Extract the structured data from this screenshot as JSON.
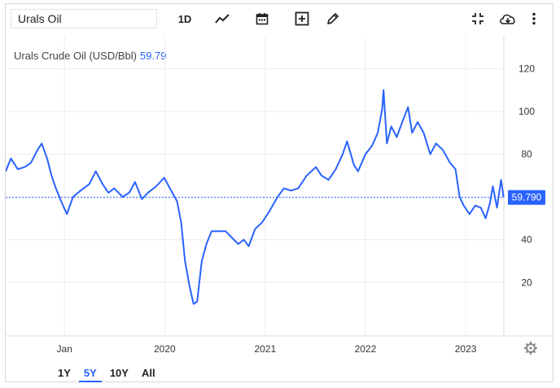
{
  "search": {
    "value": "Urals Oil"
  },
  "toolbar": {
    "interval_label": "1D",
    "icons": [
      "line-chart-icon",
      "calendar-icon",
      "add-indicator-icon",
      "pencil-icon",
      "fullscreen-icon",
      "download-icon",
      "more-vertical-icon"
    ]
  },
  "ranges": [
    {
      "label": "1Y",
      "active": false
    },
    {
      "label": "5Y",
      "active": true
    },
    {
      "label": "10Y",
      "active": false
    },
    {
      "label": "All",
      "active": false
    }
  ],
  "colors": {
    "line": "#2962ff",
    "grid": "#ececec",
    "badge": "#2962ff"
  },
  "chart_data": {
    "type": "line",
    "title": "Urals Crude Oil (USD/Bbl)",
    "last_value": "59.79",
    "last_badge": "59.790",
    "y_ticks": [
      "20",
      "40",
      "60",
      "80",
      "100",
      "120"
    ],
    "ylim": [
      -5,
      135
    ],
    "x_ticks": [
      "Jan",
      "2020",
      "2021",
      "2022",
      "2023"
    ],
    "x_tick_dates": [
      "2019-01-01",
      "2020-01-01",
      "2021-01-01",
      "2022-01-01",
      "2023-01-01"
    ],
    "xlim": [
      "2018-06-01",
      "2023-05-20"
    ],
    "grid": true,
    "series": [
      {
        "x": [
          "2018-06-01",
          "2018-06-20",
          "2018-07-15",
          "2018-08-10",
          "2018-09-01",
          "2018-09-25",
          "2018-10-10",
          "2018-10-30",
          "2018-11-15",
          "2018-12-01",
          "2018-12-20",
          "2019-01-10",
          "2019-02-01",
          "2019-03-01",
          "2019-04-01",
          "2019-04-25",
          "2019-05-20",
          "2019-06-10",
          "2019-07-01",
          "2019-08-01",
          "2019-08-25",
          "2019-09-15",
          "2019-10-10",
          "2019-11-01",
          "2019-12-01",
          "2019-12-30",
          "2020-01-20",
          "2020-02-15",
          "2020-03-01",
          "2020-03-15",
          "2020-04-01",
          "2020-04-15",
          "2020-04-28",
          "2020-05-15",
          "2020-06-01",
          "2020-06-20",
          "2020-07-15",
          "2020-08-10",
          "2020-09-01",
          "2020-09-25",
          "2020-10-15",
          "2020-11-02",
          "2020-11-25",
          "2020-12-20",
          "2021-01-15",
          "2021-02-15",
          "2021-03-10",
          "2021-04-05",
          "2021-05-01",
          "2021-06-01",
          "2021-07-05",
          "2021-07-25",
          "2021-08-20",
          "2021-09-15",
          "2021-10-10",
          "2021-10-26",
          "2021-11-20",
          "2021-12-05",
          "2022-01-01",
          "2022-01-25",
          "2022-02-15",
          "2022-03-03",
          "2022-03-08",
          "2022-03-20",
          "2022-04-05",
          "2022-04-25",
          "2022-05-15",
          "2022-06-05",
          "2022-06-20",
          "2022-07-10",
          "2022-08-01",
          "2022-08-25",
          "2022-09-15",
          "2022-10-10",
          "2022-11-05",
          "2022-11-25",
          "2022-12-10",
          "2022-12-25",
          "2023-01-15",
          "2023-02-05",
          "2023-02-25",
          "2023-03-15",
          "2023-03-30",
          "2023-04-10",
          "2023-04-25",
          "2023-05-10",
          "2023-05-19"
        ],
        "values": [
          72,
          78,
          73,
          74,
          76,
          82,
          85,
          78,
          70,
          64,
          58,
          52,
          60,
          63,
          66,
          72,
          66,
          62,
          64,
          60,
          62,
          67,
          59,
          62,
          65,
          69,
          64,
          58,
          48,
          30,
          18,
          10,
          11,
          30,
          38,
          44,
          44,
          44,
          41,
          38,
          40,
          37,
          45,
          48,
          53,
          60,
          64,
          63,
          64,
          70,
          74,
          70,
          68,
          73,
          80,
          86,
          75,
          72,
          80,
          84,
          90,
          101,
          110,
          85,
          93,
          88,
          95,
          102,
          90,
          95,
          90,
          80,
          85,
          82,
          76,
          73,
          60,
          56,
          52,
          56,
          55,
          50,
          57,
          65,
          55,
          68,
          59.79
        ]
      }
    ]
  }
}
